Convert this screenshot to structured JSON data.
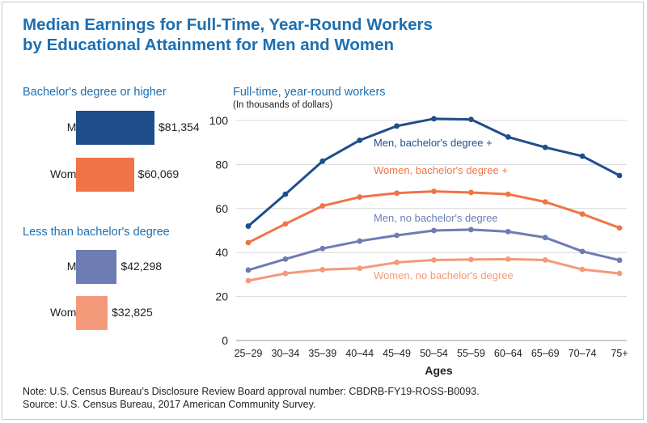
{
  "title_line1": "Median Earnings for Full-Time, Year-Round Workers",
  "title_line2": "by Educational Attainment for Men and Women",
  "colors": {
    "title": "#1d6fb0",
    "men_ba": "#1f4e8c",
    "women_ba": "#f07447",
    "men_no_ba": "#6d7db3",
    "women_no_ba": "#f39a7a"
  },
  "chart_data": [
    {
      "type": "bar",
      "title": "Bachelor's degree or higher",
      "categories": [
        "Men",
        "Women"
      ],
      "values": [
        81354,
        60069
      ],
      "value_labels": [
        "$81,354",
        "$60,069"
      ],
      "colors": [
        "#1f4e8c",
        "#f07447"
      ],
      "xlim": [
        0,
        100000
      ]
    },
    {
      "type": "bar",
      "title": "Less than bachelor's degree",
      "categories": [
        "Men",
        "Women"
      ],
      "values": [
        42298,
        32825
      ],
      "value_labels": [
        "$42,298",
        "$32,825"
      ],
      "colors": [
        "#6d7db3",
        "#f39a7a"
      ],
      "xlim": [
        0,
        100000
      ]
    },
    {
      "type": "line",
      "title": "Full-time, year-round workers",
      "subtitle": "(In thousands of dollars)",
      "xlabel": "Ages",
      "ylabel": "",
      "x": [
        "25–29",
        "30–34",
        "35–39",
        "40–44",
        "45–49",
        "50–54",
        "55–59",
        "60–64",
        "65–69",
        "70–74",
        "75+"
      ],
      "ylim": [
        0,
        100
      ],
      "yticks": [
        0,
        20,
        40,
        60,
        80,
        100
      ],
      "grid": "horizontal",
      "series": [
        {
          "name": "Men, bachelor's degree +",
          "color": "#1f4e8c",
          "values": [
            52,
            66.5,
            81.5,
            91,
            97.5,
            100.8,
            100.5,
            92.5,
            87.8,
            83.8,
            75
          ]
        },
        {
          "name": "Women, bachelor's degree +",
          "color": "#f07447",
          "values": [
            44.5,
            53,
            61.2,
            65.2,
            67,
            67.8,
            67.3,
            66.5,
            63,
            57.5,
            51.2
          ]
        },
        {
          "name": "Men, no bachelor's degree",
          "color": "#6d7db3",
          "values": [
            32,
            37,
            41.8,
            45.2,
            47.8,
            50,
            50.4,
            49.5,
            46.8,
            40.5,
            36.5
          ]
        },
        {
          "name": "Women, no bachelor's degree",
          "color": "#f39a7a",
          "values": [
            27.2,
            30.5,
            32.2,
            32.8,
            35.5,
            36.6,
            36.8,
            37,
            36.6,
            32.3,
            30.5
          ]
        }
      ]
    }
  ],
  "note": "Note: U.S. Census Bureau’s Disclosure Review Board approval number: CBDRB-FY19-ROSS-B0093.",
  "source": "Source: U.S. Census Bureau, 2017 American Community Survey."
}
